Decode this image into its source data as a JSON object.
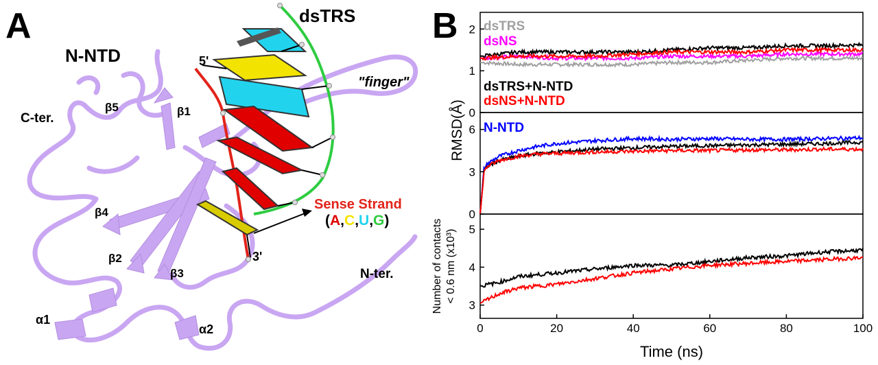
{
  "panel_a": {
    "panel_label": "A",
    "protein_name": "N-NTD",
    "dna_name": "dsTRS",
    "finger_label": "\"finger\"",
    "end5": "5'",
    "end3": "3'",
    "sense_strand": "Sense Strand",
    "bases": {
      "open": "(",
      "A": "A",
      "comma1": ",",
      "C": "C",
      "comma2": ",",
      "U": "U",
      "comma3": ",",
      "G": "G",
      "close": ")"
    },
    "c_ter": "C-ter.",
    "n_ter": "N-ter.",
    "beta1": "β1",
    "beta2": "β2",
    "beta3": "β3",
    "beta4": "β4",
    "beta5": "β5",
    "alpha1": "α1",
    "alpha2": "α2",
    "colors": {
      "protein": "#c9a6f2",
      "strand_backbone": "#e2231a",
      "green_backbone": "#2ecc40",
      "base_A": "#e00000",
      "base_C": "#f2e400",
      "base_U": "#22d3ee",
      "base_G": "#2ecc40"
    }
  },
  "panel_b": {
    "panel_label": "B",
    "shared_ylabel": "RMSD(Å)",
    "bottom_ylabel_line1": "Number of contacts",
    "bottom_ylabel_line2": "< 0.6 nm (x10³)",
    "xlabel": "Time (ns)"
  },
  "chart_data": [
    {
      "type": "line",
      "panel": "top",
      "ylim": [
        0,
        2.4
      ],
      "xlim": [
        0,
        100
      ],
      "yticks": [
        "0",
        "1",
        "2"
      ],
      "series": [
        {
          "name": "dsTRS",
          "color": "#a0a0a0",
          "x": [
            0,
            10,
            20,
            30,
            40,
            50,
            60,
            70,
            80,
            90,
            100
          ],
          "values": [
            1.2,
            1.15,
            1.15,
            1.15,
            1.15,
            1.2,
            1.2,
            1.25,
            1.3,
            1.3,
            1.3
          ]
        },
        {
          "name": "dsNS",
          "color": "#ff00ff",
          "x": [
            0,
            10,
            20,
            30,
            40,
            50,
            60,
            70,
            80,
            90,
            100
          ],
          "values": [
            1.3,
            1.35,
            1.3,
            1.3,
            1.3,
            1.35,
            1.35,
            1.35,
            1.4,
            1.4,
            1.4
          ]
        },
        {
          "name": "dsTRS+N-NTD",
          "color": "#000000",
          "x": [
            0,
            10,
            20,
            30,
            40,
            50,
            60,
            70,
            80,
            90,
            100
          ],
          "values": [
            1.35,
            1.45,
            1.45,
            1.45,
            1.45,
            1.5,
            1.55,
            1.55,
            1.6,
            1.6,
            1.62
          ]
        },
        {
          "name": "dsNS+N-NTD",
          "color": "#ff0000",
          "x": [
            0,
            10,
            20,
            30,
            40,
            50,
            60,
            70,
            80,
            90,
            100
          ],
          "values": [
            1.3,
            1.35,
            1.35,
            1.35,
            1.4,
            1.45,
            1.45,
            1.45,
            1.5,
            1.5,
            1.5
          ]
        }
      ]
    },
    {
      "type": "line",
      "panel": "middle",
      "ylim": [
        0,
        7.2
      ],
      "xlim": [
        0,
        100
      ],
      "yticks": [
        "0",
        "3",
        "6"
      ],
      "series": [
        {
          "name": "N-NTD",
          "color": "#0000ff",
          "x": [
            0,
            1,
            2,
            5,
            10,
            15,
            20,
            30,
            40,
            50,
            60,
            70,
            80,
            90,
            100
          ],
          "values": [
            0,
            3.2,
            3.6,
            4.1,
            4.5,
            4.8,
            5.0,
            5.2,
            5.35,
            5.3,
            5.35,
            5.3,
            5.3,
            5.35,
            5.4
          ]
        },
        {
          "name": "",
          "color": "#000000",
          "x": [
            0,
            1,
            2,
            5,
            10,
            15,
            20,
            30,
            40,
            50,
            60,
            70,
            80,
            90,
            100
          ],
          "values": [
            0,
            3.0,
            3.4,
            3.8,
            4.1,
            4.3,
            4.4,
            4.6,
            4.7,
            4.8,
            4.85,
            4.9,
            4.95,
            5.0,
            5.1
          ]
        },
        {
          "name": "",
          "color": "#ff0000",
          "x": [
            0,
            1,
            2,
            5,
            10,
            15,
            20,
            30,
            40,
            50,
            60,
            70,
            80,
            90,
            100
          ],
          "values": [
            0,
            3.0,
            3.4,
            3.8,
            4.1,
            4.25,
            4.3,
            4.4,
            4.45,
            4.5,
            4.5,
            4.55,
            4.55,
            4.6,
            4.6
          ]
        }
      ]
    },
    {
      "type": "line",
      "panel": "bottom",
      "ylim": [
        2.65,
        5.4
      ],
      "xlim": [
        0,
        100
      ],
      "yticks": [
        "3",
        "4",
        "5"
      ],
      "xticks": [
        "0",
        "20",
        "40",
        "60",
        "80",
        "100"
      ],
      "series": [
        {
          "name": "",
          "color": "#000000",
          "x": [
            0,
            5,
            10,
            20,
            30,
            40,
            50,
            60,
            70,
            80,
            90,
            100
          ],
          "values": [
            3.5,
            3.6,
            3.75,
            3.85,
            3.95,
            4.05,
            4.05,
            4.15,
            4.25,
            4.3,
            4.4,
            4.45
          ]
        },
        {
          "name": "",
          "color": "#ff0000",
          "x": [
            0,
            5,
            10,
            20,
            30,
            40,
            50,
            60,
            70,
            80,
            90,
            100
          ],
          "values": [
            3.05,
            3.3,
            3.45,
            3.55,
            3.7,
            3.85,
            3.95,
            4.05,
            4.1,
            4.15,
            4.2,
            4.25
          ]
        }
      ]
    }
  ]
}
